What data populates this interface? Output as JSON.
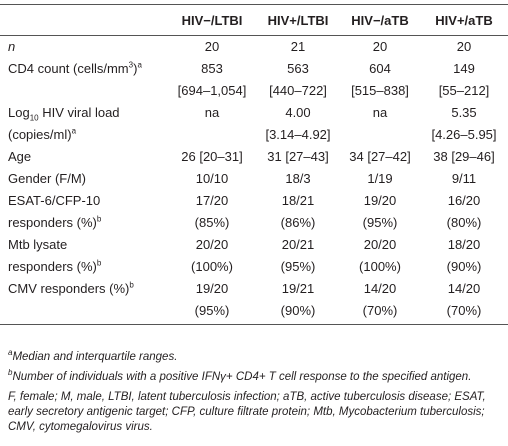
{
  "table": {
    "header": [
      "HIV−/LTBI",
      "HIV+/LTBI",
      "HIV−/aTB",
      "HIV+/aTB"
    ],
    "rows": [
      {
        "label": [
          [
            {
              "i": "n"
            }
          ]
        ],
        "cells": [
          [
            "20"
          ],
          [
            "21"
          ],
          [
            "20"
          ],
          [
            "20"
          ]
        ]
      },
      {
        "label": [
          [
            "CD4 count (cells/mm",
            {
              "sup": "3"
            },
            ")",
            {
              "sup": "a"
            }
          ]
        ],
        "cells": [
          [
            "853",
            "[694–1,054]"
          ],
          [
            "563",
            "[440–722]"
          ],
          [
            "604",
            "[515–838]"
          ],
          [
            "149",
            "[55–212]"
          ]
        ]
      },
      {
        "label": [
          [
            "Log",
            {
              "sub": "10"
            },
            " HIV viral load"
          ],
          [
            "(copies/ml)",
            {
              "sup": "a"
            }
          ]
        ],
        "cells": [
          [
            "na"
          ],
          [
            "4.00",
            "[3.14–4.92]"
          ],
          [
            "na"
          ],
          [
            "5.35",
            "[4.26–5.95]"
          ]
        ]
      },
      {
        "label": [
          [
            "Age"
          ]
        ],
        "cells": [
          [
            "26 [20–31]"
          ],
          [
            "31 [27–43]"
          ],
          [
            "34 [27–42]"
          ],
          [
            "38 [29–46]"
          ]
        ]
      },
      {
        "label": [
          [
            "Gender (F/M)"
          ]
        ],
        "cells": [
          [
            "10/10"
          ],
          [
            "18/3"
          ],
          [
            "1/19"
          ],
          [
            "9/11"
          ]
        ]
      },
      {
        "label": [
          [
            "ESAT-6/CFP-10"
          ],
          [
            "responders (%)",
            {
              "sup": "b"
            }
          ]
        ],
        "cells": [
          [
            "17/20",
            "(85%)"
          ],
          [
            "18/21",
            "(86%)"
          ],
          [
            "19/20",
            "(95%)"
          ],
          [
            "16/20",
            "(80%)"
          ]
        ]
      },
      {
        "label": [
          [
            "Mtb lysate"
          ],
          [
            "responders (%)",
            {
              "sup": "b"
            }
          ]
        ],
        "cells": [
          [
            "20/20",
            "(100%)"
          ],
          [
            "20/21",
            "(95%)"
          ],
          [
            "20/20",
            "(100%)"
          ],
          [
            "18/20",
            "(90%)"
          ]
        ]
      },
      {
        "label": [
          [
            "CMV responders (%)",
            {
              "sup": "b"
            }
          ]
        ],
        "cells": [
          [
            "19/20",
            "(95%)"
          ],
          [
            "19/21",
            "(90%)"
          ],
          [
            "14/20",
            "(70%)"
          ],
          [
            "14/20",
            "(70%)"
          ]
        ]
      }
    ],
    "footnotes": [
      {
        "mark": "a",
        "text": "Median and interquartile ranges."
      },
      {
        "mark": "b",
        "text": "Number of individuals with a positive IFNγ+ CD4+ T cell response to the specified antigen."
      },
      {
        "text": "F, female; M, male, LTBI, latent tuberculosis infection; aTB, active tuberculosis disease; ESAT, early secretory antigenic target; CFP, culture filtrate protein; Mtb, Mycobacterium tuberculosis; CMV, cytomegalovirus virus."
      }
    ]
  }
}
